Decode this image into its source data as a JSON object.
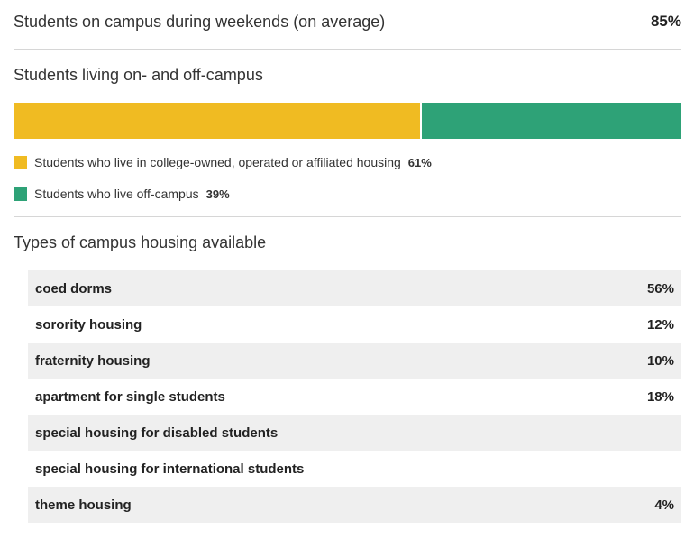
{
  "weekend": {
    "label": "Students on campus during weekends (on average)",
    "value": "85%"
  },
  "living": {
    "title": "Students living on- and off-campus",
    "segments": [
      {
        "label": "Students who live in college-owned, operated or affiliated housing",
        "value": "61%",
        "fraction": 0.61,
        "color": "#f0bb22"
      },
      {
        "label": "Students who live off-campus",
        "value": "39%",
        "fraction": 0.39,
        "color": "#2ea277"
      }
    ]
  },
  "housing": {
    "title": "Types of campus housing available",
    "rows": [
      {
        "name": "coed dorms",
        "value": "56%"
      },
      {
        "name": "sorority housing",
        "value": "12%"
      },
      {
        "name": "fraternity housing",
        "value": "10%"
      },
      {
        "name": "apartment for single students",
        "value": "18%"
      },
      {
        "name": "special housing for disabled students",
        "value": ""
      },
      {
        "name": "special housing for international students",
        "value": ""
      },
      {
        "name": "theme housing",
        "value": "4%"
      }
    ]
  }
}
